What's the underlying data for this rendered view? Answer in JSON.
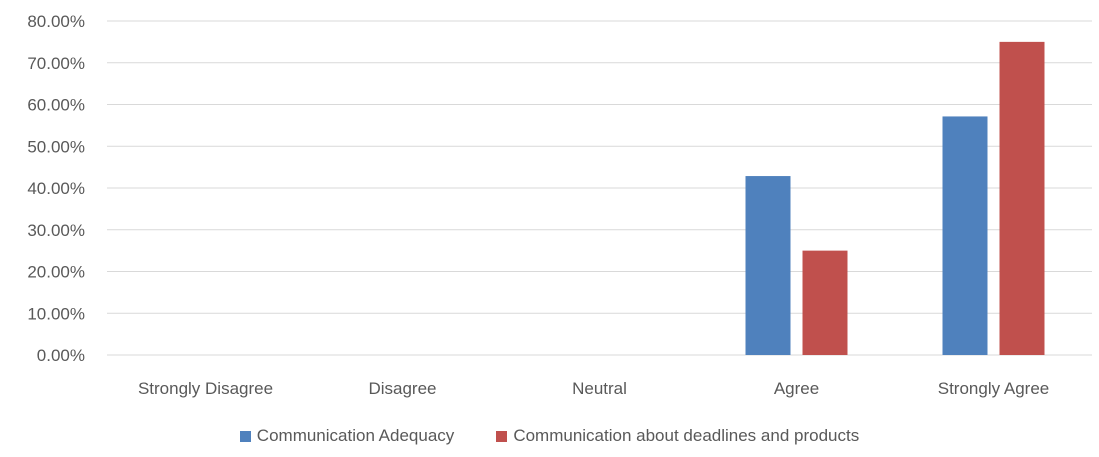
{
  "chart_data": {
    "type": "bar",
    "title": "",
    "xlabel": "",
    "ylabel": "",
    "categories": [
      "Strongly Disagree",
      "Disagree",
      "Neutral",
      "Agree",
      "Strongly Agree"
    ],
    "series": [
      {
        "name": "Communication Adequacy",
        "color": "#4F81BD",
        "values": [
          0,
          0,
          0,
          42.86,
          57.14
        ]
      },
      {
        "name": "Communication about deadlines and products",
        "color": "#C0504D",
        "values": [
          0,
          0,
          0,
          25.0,
          75.0
        ]
      }
    ],
    "ylim": [
      0,
      80
    ],
    "yticks": [
      "0.00%",
      "10.00%",
      "20.00%",
      "30.00%",
      "40.00%",
      "50.00%",
      "60.00%",
      "70.00%",
      "80.00%"
    ],
    "grid": true,
    "legend_position": "bottom"
  }
}
